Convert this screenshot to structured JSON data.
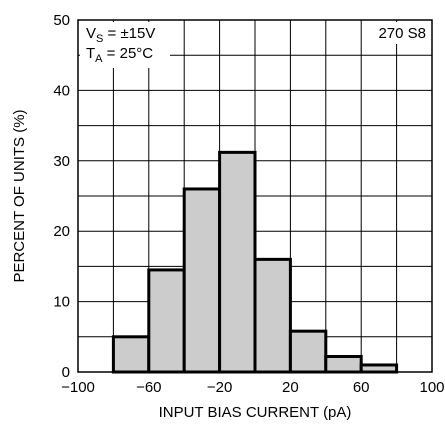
{
  "chart_data": {
    "type": "bar",
    "subtype": "histogram",
    "bins": [
      {
        "x0": -80,
        "x1": -60,
        "value": 5
      },
      {
        "x0": -60,
        "x1": -40,
        "value": 14.5
      },
      {
        "x0": -40,
        "x1": -20,
        "value": 26
      },
      {
        "x0": -20,
        "x1": 0,
        "value": 31.2
      },
      {
        "x0": 0,
        "x1": 20,
        "value": 16
      },
      {
        "x0": 20,
        "x1": 40,
        "value": 5.8
      },
      {
        "x0": 40,
        "x1": 60,
        "value": 2.2
      },
      {
        "x0": 60,
        "x1": 80,
        "value": 1
      }
    ],
    "xlabel": "INPUT BIAS CURRENT (pA)",
    "ylabel": "PERCENT OF UNITS (%)",
    "xlim": [
      -100,
      100
    ],
    "ylim": [
      0,
      50
    ],
    "x_ticks": [
      -100,
      -60,
      -20,
      20,
      60,
      100
    ],
    "x_tick_labels": [
      "−100",
      "−60",
      "−20",
      "20",
      "60",
      "100"
    ],
    "y_ticks": [
      0,
      10,
      20,
      30,
      40,
      50
    ],
    "y_tick_labels": [
      "0",
      "10",
      "20",
      "30",
      "40",
      "50"
    ],
    "x_grid_step": 20,
    "y_grid_step": 5,
    "grid": true,
    "annotations": {
      "vs": {
        "main": "V",
        "sub": "S",
        "rest": " = ±15V"
      },
      "ta": {
        "main": "T",
        "sub": "A",
        "rest": " = 25°C"
      },
      "code": "270 S8"
    },
    "colors": {
      "bar_fill": "#cccccc",
      "bar_stroke": "#000000",
      "grid": "#000000",
      "background": "#ffffff"
    }
  }
}
